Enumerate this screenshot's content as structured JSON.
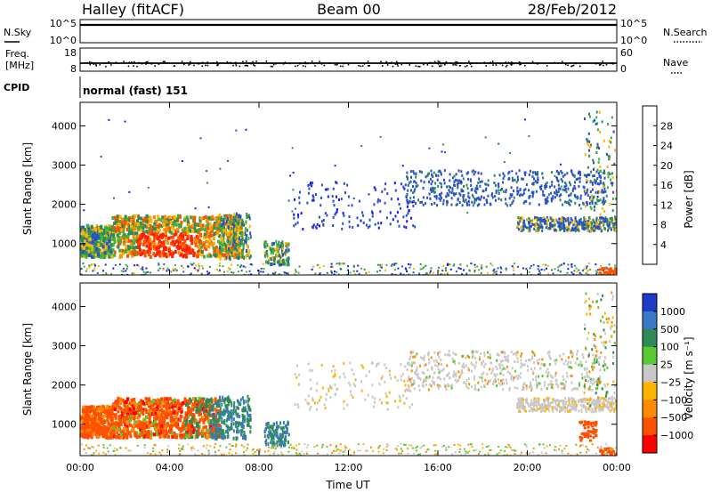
{
  "header": {
    "station": "Halley (fitACF)",
    "beam": "Beam 00",
    "date": "28/Feb/2012"
  },
  "strip_nsky": {
    "left_label": "N.Sky",
    "right_label": "N.Search",
    "tick_top_left": "10^5",
    "tick_bottom_left": "10^0",
    "tick_top_right": "10^5",
    "tick_bottom_right": "10^0"
  },
  "strip_freq": {
    "left_label_1": "Freq.",
    "left_label_2": "[MHz]",
    "right_label": "Nave",
    "tick_top_left": "18",
    "tick_bottom_left": "8",
    "tick_top_right": "60",
    "tick_bottom_right": "0"
  },
  "strip_cpid": {
    "label": "CPID",
    "text": "normal (fast) 151"
  },
  "chart_data": [
    {
      "type": "heatmap",
      "title": "",
      "xlabel": "",
      "ylabel": "Slant Range [km]",
      "xlim": [
        "00:00",
        "24:00"
      ],
      "ylim": [
        200,
        4600
      ],
      "yticks": [
        1000,
        2000,
        3000,
        4000
      ],
      "colorbar": {
        "label": "Power [dB]",
        "ticks": [
          "4",
          "8",
          "12",
          "16",
          "20",
          "24",
          "28"
        ],
        "colors": [
          "#1414ff",
          "#2850c8",
          "#2e8b57",
          "#3cb43c",
          "#ffb400",
          "#ff8c00",
          "#ff5000",
          "#ff1e00"
        ]
      }
    },
    {
      "type": "heatmap",
      "title": "",
      "xlabel": "Time UT",
      "ylabel": "Slant Range [km]",
      "xlim": [
        "00:00",
        "24:00"
      ],
      "ylim": [
        200,
        4600
      ],
      "xticks": [
        "00:00",
        "04:00",
        "08:00",
        "12:00",
        "16:00",
        "20:00",
        "00:00"
      ],
      "yticks": [
        1000,
        2000,
        3000,
        4000
      ],
      "colorbar": {
        "label": "Velocity [m s⁻¹]",
        "ticks": [
          "1000",
          "500",
          "100",
          "25",
          "−25",
          "−100",
          "−500",
          "−1000"
        ],
        "colors": [
          "#1e3cc8",
          "#3c78c8",
          "#2e8b57",
          "#5ac832",
          "#c8c8c8",
          "#ffb400",
          "#ff8c00",
          "#ff5000",
          "#ff0000"
        ]
      }
    }
  ]
}
